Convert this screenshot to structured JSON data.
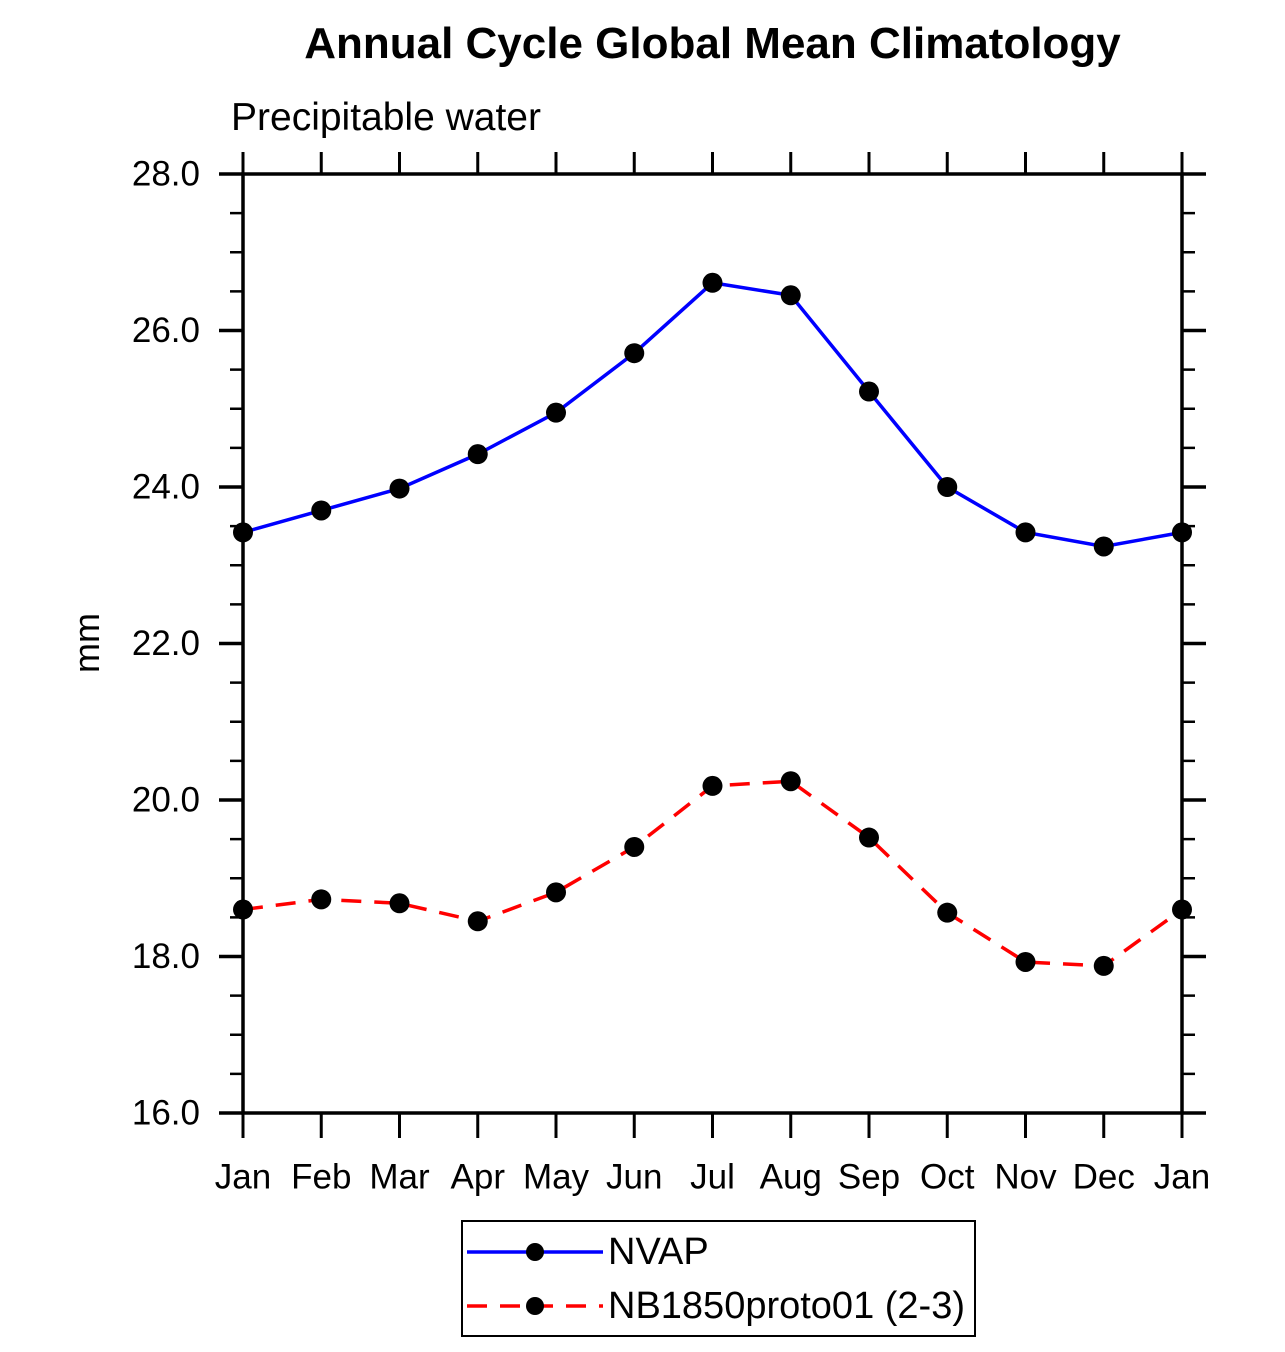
{
  "title": "Annual Cycle Global Mean Climatology",
  "subtitle": "Precipitable water",
  "ylabel": "mm",
  "chart_data": {
    "type": "line",
    "categories": [
      "Jan",
      "Feb",
      "Mar",
      "Apr",
      "May",
      "Jun",
      "Jul",
      "Aug",
      "Sep",
      "Oct",
      "Nov",
      "Dec",
      "Jan"
    ],
    "series": [
      {
        "name": "NVAP",
        "color": "#0000ff",
        "line_style": "solid",
        "marker": "circle",
        "marker_color": "#000000",
        "values": [
          23.42,
          23.7,
          23.98,
          24.42,
          24.95,
          25.71,
          26.61,
          26.45,
          25.22,
          24.0,
          23.42,
          23.24,
          23.42
        ]
      },
      {
        "name": "NB1850proto01 (2-3)",
        "color": "#ff0000",
        "line_style": "dashed",
        "marker": "circle",
        "marker_color": "#000000",
        "values": [
          18.6,
          18.73,
          18.68,
          18.45,
          18.82,
          19.4,
          20.18,
          20.24,
          19.52,
          18.56,
          17.93,
          17.88,
          18.6
        ]
      }
    ],
    "ylim": [
      16.0,
      28.0
    ],
    "y_major_step": 2.0,
    "y_minor_step": 0.5,
    "y_tick_labels": [
      "16.0",
      "18.0",
      "20.0",
      "22.0",
      "24.0",
      "26.0",
      "28.0"
    ],
    "grid": false,
    "legend_position": "bottom",
    "axis_color": "#000000"
  }
}
